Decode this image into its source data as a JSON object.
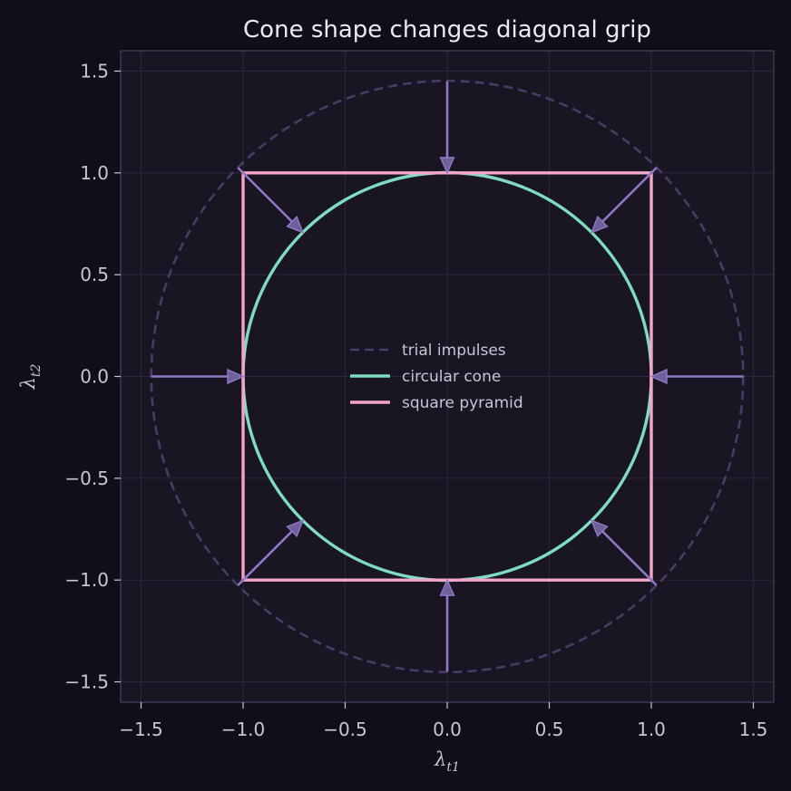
{
  "chart_data": {
    "type": "line",
    "title": "Cone shape changes diagonal grip",
    "xlabel": {
      "symbol": "λ",
      "subscript": "t1"
    },
    "ylabel": {
      "symbol": "λ",
      "subscript": "t2"
    },
    "xlim": [
      -1.6,
      1.6
    ],
    "ylim": [
      -1.6,
      1.6
    ],
    "xticks": [
      -1.5,
      -1.0,
      -0.5,
      0.0,
      0.5,
      1.0,
      1.5
    ],
    "yticks": [
      -1.5,
      -1.0,
      -0.5,
      0.0,
      0.5,
      1.0,
      1.5
    ],
    "xtick_labels": [
      "−1.5",
      "−1.0",
      "−0.5",
      "0.0",
      "0.5",
      "1.0",
      "1.5"
    ],
    "ytick_labels": [
      "−1.5",
      "−1.0",
      "−0.5",
      "0.0",
      "0.5",
      "1.0",
      "1.5"
    ],
    "grid": true,
    "legend_position": "center",
    "series": [
      {
        "name": "trial impulses",
        "shape": "circle",
        "radius": 1.45,
        "style": "dashed",
        "color": "#483c67"
      },
      {
        "name": "circular cone",
        "shape": "circle",
        "radius": 1.0,
        "style": "solid",
        "color": "#7fdcc1"
      },
      {
        "name": "square pyramid",
        "shape": "square",
        "half_width": 1.0,
        "style": "solid",
        "color": "#f4a6c9"
      }
    ],
    "arrows": {
      "color": "#8f78c6",
      "items": [
        {
          "from": [
            1.45,
            0.0
          ],
          "to": [
            1.0,
            0.0
          ]
        },
        {
          "from": [
            1.0253,
            1.0253
          ],
          "to": [
            0.7071,
            0.7071
          ]
        },
        {
          "from": [
            0.0,
            1.45
          ],
          "to": [
            0.0,
            1.0
          ]
        },
        {
          "from": [
            -1.0253,
            1.0253
          ],
          "to": [
            -0.7071,
            0.7071
          ]
        },
        {
          "from": [
            -1.45,
            0.0
          ],
          "to": [
            -1.0,
            0.0
          ]
        },
        {
          "from": [
            -1.0253,
            -1.0253
          ],
          "to": [
            -0.7071,
            -0.7071
          ]
        },
        {
          "from": [
            0.0,
            -1.45
          ],
          "to": [
            0.0,
            -1.0
          ]
        },
        {
          "from": [
            1.0253,
            -1.0253
          ],
          "to": [
            0.7071,
            -0.7071
          ]
        }
      ]
    }
  }
}
